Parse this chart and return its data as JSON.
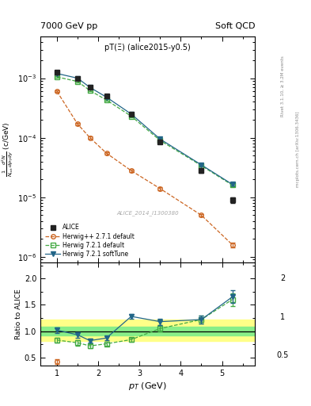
{
  "title_left": "7000 GeV pp",
  "title_right": "Soft QCD",
  "plot_label": "pT(Ξ) (alice2015-y0.5)",
  "watermark": "ALICE_2014_I1300380",
  "right_label_top": "Rivet 3.1.10, ≥ 3.2M events",
  "right_label_bot": "mcplots.cern.ch [arXiv:1306.3436]",
  "alice_pt": [
    1.0,
    1.5,
    1.8,
    2.2,
    2.8,
    3.5,
    4.5,
    5.25
  ],
  "alice_y": [
    0.00125,
    0.001,
    0.0007,
    0.0005,
    0.00025,
    8.5e-05,
    2.8e-05,
    9e-06
  ],
  "alice_yerr": [
    0.0001,
    5e-05,
    4e-05,
    3e-05,
    1.5e-05,
    6e-06,
    2.5e-06,
    1e-06
  ],
  "hppdef_pt": [
    1.0,
    1.5,
    1.8,
    2.2,
    2.8,
    3.5,
    4.5,
    5.25
  ],
  "hppdef_y": [
    0.0006,
    0.00017,
    0.0001,
    5.5e-05,
    2.8e-05,
    1.4e-05,
    5e-06,
    1.6e-06
  ],
  "hppdef_yerr": [
    2e-05,
    8e-06,
    4e-06,
    2.5e-06,
    1.2e-06,
    7e-07,
    2.5e-07,
    1.5e-07
  ],
  "h721def_pt": [
    1.0,
    1.5,
    1.8,
    2.2,
    2.8,
    3.5,
    4.5,
    5.25
  ],
  "h721def_y": [
    0.00105,
    0.00088,
    0.00062,
    0.00043,
    0.00023,
    9e-05,
    3.4e-05,
    1.6e-05
  ],
  "h721def_yerr": [
    3e-05,
    3e-05,
    2e-05,
    1.5e-05,
    8e-06,
    3.5e-06,
    1.5e-06,
    8e-07
  ],
  "h721st_pt": [
    1.0,
    1.5,
    1.8,
    2.2,
    2.8,
    3.5,
    4.5,
    5.25
  ],
  "h721st_y": [
    0.0012,
    0.001,
    0.0007,
    0.00048,
    0.00025,
    9.5e-05,
    3.5e-05,
    1.65e-05
  ],
  "h721st_yerr": [
    3.5e-05,
    3.5e-05,
    2.5e-05,
    1.8e-05,
    9e-06,
    4e-06,
    1.5e-06,
    8e-07
  ],
  "ratio_hppdef_y": [
    0.42,
    null,
    null,
    null,
    null,
    null,
    null,
    null
  ],
  "ratio_hppdef_pt": [
    1.0
  ],
  "ratio_hppdef_yv": [
    0.42
  ],
  "ratio_hppdef_yerr_v": [
    0.04
  ],
  "ratio_h721def_pt": [
    1.0,
    1.5,
    1.8,
    2.2,
    2.8,
    3.5,
    4.5,
    5.25
  ],
  "ratio_h721def_y": [
    0.83,
    0.78,
    0.72,
    0.76,
    0.84,
    1.05,
    1.22,
    1.6
  ],
  "ratio_h721def_yerr": [
    0.05,
    0.05,
    0.04,
    0.04,
    0.04,
    0.06,
    0.08,
    0.12
  ],
  "ratio_h721st_pt": [
    1.0,
    1.5,
    1.8,
    2.2,
    2.8,
    3.5,
    4.5,
    5.25
  ],
  "ratio_h721st_y": [
    1.02,
    0.93,
    0.82,
    0.87,
    1.28,
    1.18,
    1.22,
    1.65
  ],
  "ratio_h721st_yerr": [
    0.05,
    0.05,
    0.04,
    0.04,
    0.05,
    0.06,
    0.08,
    0.12
  ],
  "alice_band_yellow_lo": 0.82,
  "alice_band_yellow_hi": 1.22,
  "alice_band_green_lo": 0.92,
  "alice_band_green_hi": 1.08,
  "color_alice": "#222222",
  "color_hppdef": "#cc6622",
  "color_h721def": "#44aa44",
  "color_h721st": "#226688",
  "ylim_main": [
    8e-07,
    0.005
  ],
  "ylim_ratio": [
    0.35,
    2.3
  ],
  "xlim": [
    0.6,
    5.8
  ]
}
